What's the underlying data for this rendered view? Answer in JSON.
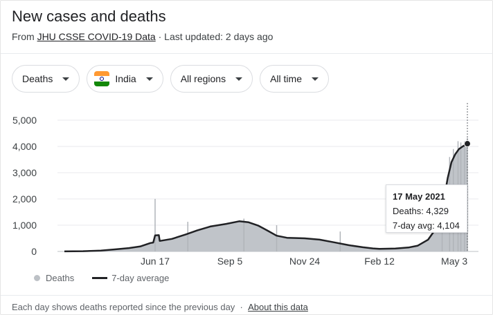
{
  "header": {
    "title": "New cases and deaths",
    "source_prefix": "From ",
    "source_link": "JHU CSSE COVID-19 Data",
    "updated": " · Last updated: 2 days ago"
  },
  "filters": {
    "metric": "Deaths",
    "country": "India",
    "region": "All regions",
    "timeframe": "All time"
  },
  "tooltip": {
    "date": "17 May 2021",
    "deaths": "Deaths: 4,329",
    "avg": "7-day avg: 4,104"
  },
  "legend": {
    "deaths_label": "Deaths",
    "avg_label": "7-day average"
  },
  "footer": {
    "note": "Each day shows deaths reported since the previous day",
    "separator": "·",
    "about_link": "About this data"
  },
  "colors": {
    "bars": "#bdc1c6",
    "line": "#202124",
    "grid": "#e8eaed"
  },
  "chart_data": {
    "type": "area",
    "title": "",
    "xlabel": "",
    "ylabel": "",
    "ylim": [
      0,
      5000
    ],
    "yticks": [
      "5,000",
      "4,000",
      "3,000",
      "2,000",
      "1,000",
      "0"
    ],
    "ytick_values": [
      5000,
      4000,
      3000,
      2000,
      1000,
      0
    ],
    "xticks": [
      "Jun 17",
      "Sep 5",
      "Nov 24",
      "Feb 12",
      "May 3"
    ],
    "xtick_dates": [
      "2020-06-17",
      "2020-09-05",
      "2020-11-24",
      "2021-02-12",
      "2021-05-03"
    ],
    "x_start": "2020-03-12",
    "x_end": "2021-05-17",
    "grid": true,
    "legend_position": "bottom-left",
    "series": [
      {
        "name": "7-day average",
        "points": [
          [
            "2020-03-12",
            2
          ],
          [
            "2020-04-01",
            10
          ],
          [
            "2020-04-20",
            35
          ],
          [
            "2020-05-05",
            80
          ],
          [
            "2020-05-20",
            130
          ],
          [
            "2020-06-01",
            190
          ],
          [
            "2020-06-12",
            320
          ],
          [
            "2020-06-15",
            340
          ],
          [
            "2020-06-17",
            610
          ],
          [
            "2020-06-21",
            620
          ],
          [
            "2020-06-22",
            400
          ],
          [
            "2020-07-05",
            480
          ],
          [
            "2020-07-20",
            650
          ],
          [
            "2020-08-01",
            800
          ],
          [
            "2020-08-15",
            950
          ],
          [
            "2020-09-01",
            1050
          ],
          [
            "2020-09-15",
            1150
          ],
          [
            "2020-09-25",
            1110
          ],
          [
            "2020-10-05",
            990
          ],
          [
            "2020-10-15",
            800
          ],
          [
            "2020-10-25",
            600
          ],
          [
            "2020-11-05",
            520
          ],
          [
            "2020-11-15",
            510
          ],
          [
            "2020-11-24",
            500
          ],
          [
            "2020-12-10",
            450
          ],
          [
            "2020-12-25",
            350
          ],
          [
            "2021-01-10",
            240
          ],
          [
            "2021-01-25",
            160
          ],
          [
            "2021-02-05",
            115
          ],
          [
            "2021-02-12",
            100
          ],
          [
            "2021-03-01",
            110
          ],
          [
            "2021-03-15",
            150
          ],
          [
            "2021-03-25",
            220
          ],
          [
            "2021-04-05",
            450
          ],
          [
            "2021-04-12",
            800
          ],
          [
            "2021-04-18",
            1400
          ],
          [
            "2021-04-22",
            2000
          ],
          [
            "2021-04-26",
            2800
          ],
          [
            "2021-04-30",
            3400
          ],
          [
            "2021-05-04",
            3700
          ],
          [
            "2021-05-08",
            3900
          ],
          [
            "2021-05-12",
            4000
          ],
          [
            "2021-05-17",
            4104
          ]
        ]
      }
    ],
    "spikes": [
      [
        "2020-06-17",
        2003
      ],
      [
        "2020-07-22",
        1130
      ],
      [
        "2020-09-20",
        1250
      ],
      [
        "2020-10-25",
        1000
      ],
      [
        "2021-01-01",
        760
      ],
      [
        "2021-04-20",
        2300
      ],
      [
        "2021-04-28",
        3600
      ],
      [
        "2021-05-02",
        3900
      ],
      [
        "2021-05-07",
        4200
      ],
      [
        "2021-05-10",
        4150
      ],
      [
        "2021-05-14",
        4200
      ],
      [
        "2021-05-17",
        4329
      ]
    ],
    "highlight": {
      "date": "2021-05-17",
      "deaths": 4329,
      "avg": 4104
    }
  }
}
